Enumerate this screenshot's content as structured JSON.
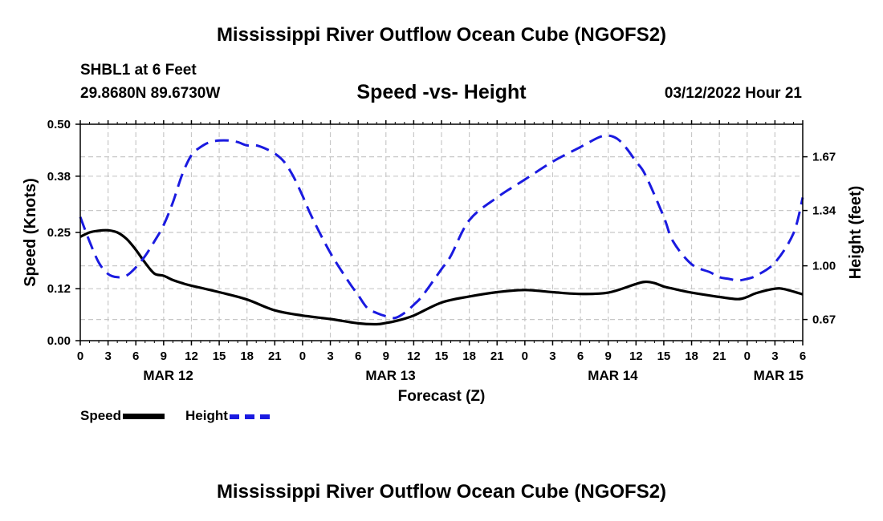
{
  "page": {
    "title_top": "Mississippi River Outflow Ocean Cube (NGOFS2)",
    "title_bottom": "Mississippi River Outflow Ocean Cube (NGOFS2)",
    "station": "SHBL1 at 6 Feet",
    "coords": "29.8680N  89.6730W",
    "subtitle": "Speed -vs- Height",
    "datetime": "03/12/2022 Hour 21"
  },
  "legend": {
    "speed_label": "Speed",
    "height_label": "Height"
  },
  "colors": {
    "speed": "#000000",
    "height": "#1a1ae0"
  },
  "chart_data": {
    "type": "line",
    "title": "Speed -vs- Height",
    "xlabel": "Forecast (Z)",
    "ylabel": "Speed (Knots)",
    "y2label": "Height (feet)",
    "xlim": [
      0,
      78
    ],
    "ylim": [
      0.0,
      0.5
    ],
    "y2lim": [
      0.54,
      1.87
    ],
    "grid": true,
    "legend_position": "bottom-left",
    "x_ticks": [
      0,
      3,
      6,
      9,
      12,
      15,
      18,
      21,
      24,
      27,
      30,
      33,
      36,
      39,
      42,
      45,
      48,
      51,
      54,
      57,
      60,
      63,
      66,
      69,
      72,
      75,
      78
    ],
    "x_tick_labels": [
      "0",
      "3",
      "6",
      "9",
      "12",
      "15",
      "18",
      "21",
      "0",
      "3",
      "6",
      "9",
      "12",
      "15",
      "18",
      "21",
      "0",
      "3",
      "6",
      "9",
      "12",
      "15",
      "18",
      "21",
      "0",
      "3",
      "6"
    ],
    "date_labels": [
      {
        "x": 9.5,
        "label": "MAR 12"
      },
      {
        "x": 33.5,
        "label": "MAR 13"
      },
      {
        "x": 57.5,
        "label": "MAR 14"
      },
      {
        "x": 78,
        "label": "MAR 15"
      }
    ],
    "y_ticks": [
      0.0,
      0.12,
      0.25,
      0.38,
      0.5
    ],
    "y_tick_labels": [
      "0.00",
      "0.12",
      "0.25",
      "0.38",
      "0.50"
    ],
    "y2_ticks": [
      0.67,
      1.0,
      1.34,
      1.67
    ],
    "y2_tick_labels": [
      "0.67",
      "1.00",
      "1.34",
      "1.67"
    ],
    "series": [
      {
        "name": "Speed",
        "axis": "left",
        "style": "solid",
        "x": [
          0,
          1,
          2,
          3,
          4,
          5,
          6,
          7,
          8,
          9,
          10,
          11,
          12,
          15,
          18,
          21,
          24,
          27,
          30,
          32,
          33,
          34,
          36,
          39,
          42,
          45,
          48,
          51,
          54,
          57,
          60,
          61,
          62,
          63,
          64,
          66,
          69,
          71,
          72,
          73,
          75,
          76,
          78
        ],
        "values": [
          0.24,
          0.25,
          0.254,
          0.255,
          0.25,
          0.235,
          0.21,
          0.18,
          0.155,
          0.15,
          0.14,
          0.133,
          0.127,
          0.112,
          0.095,
          0.07,
          0.058,
          0.05,
          0.04,
          0.038,
          0.041,
          0.045,
          0.058,
          0.088,
          0.102,
          0.112,
          0.117,
          0.112,
          0.108,
          0.111,
          0.131,
          0.136,
          0.133,
          0.125,
          0.12,
          0.111,
          0.101,
          0.096,
          0.101,
          0.11,
          0.12,
          0.119,
          0.107
        ]
      },
      {
        "name": "Height",
        "axis": "right",
        "style": "dashed",
        "x": [
          0,
          1,
          2,
          3,
          4,
          5,
          6,
          7,
          8,
          9,
          10,
          11,
          12,
          13,
          14,
          15,
          16,
          17,
          18,
          19,
          20,
          21,
          22,
          23,
          24,
          25,
          27,
          29,
          30,
          31,
          32,
          33,
          34,
          35,
          36,
          37,
          39,
          40,
          42,
          45,
          48,
          51,
          54,
          56,
          57,
          58,
          59,
          60,
          61,
          63,
          64,
          66,
          68,
          69,
          70,
          71,
          72,
          73,
          75,
          77,
          78
        ],
        "values": [
          1.3,
          1.15,
          1.02,
          0.95,
          0.93,
          0.94,
          0.99,
          1.06,
          1.15,
          1.25,
          1.39,
          1.56,
          1.68,
          1.73,
          1.76,
          1.77,
          1.77,
          1.76,
          1.74,
          1.74,
          1.72,
          1.69,
          1.64,
          1.55,
          1.43,
          1.3,
          1.08,
          0.9,
          0.82,
          0.74,
          0.71,
          0.69,
          0.68,
          0.71,
          0.76,
          0.82,
          0.98,
          1.06,
          1.28,
          1.42,
          1.53,
          1.64,
          1.73,
          1.79,
          1.8,
          1.78,
          1.72,
          1.64,
          1.56,
          1.3,
          1.15,
          1.01,
          0.96,
          0.93,
          0.92,
          0.91,
          0.92,
          0.94,
          1.02,
          1.2,
          1.42
        ]
      }
    ]
  }
}
